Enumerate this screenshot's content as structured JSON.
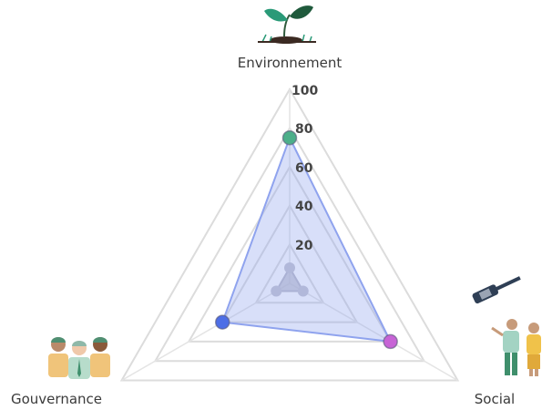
{
  "chart_data": {
    "type": "radar",
    "axes": [
      "Environnement",
      "Social",
      "Gouvernance"
    ],
    "range": [
      0,
      100
    ],
    "ticks": [
      20,
      40,
      60,
      80,
      100
    ],
    "grid": true,
    "legend": "none",
    "series": [
      {
        "values": [
          75,
          60,
          40
        ],
        "color": "#8fa3ee"
      },
      {
        "values": [
          8,
          8,
          8
        ],
        "color": "#b9b9c6"
      }
    ],
    "point_colors": [
      "#4caf8a",
      "#c764d6",
      "#4d6ee6"
    ],
    "icons": [
      "seedling-icon",
      "gavel-people-icon",
      "business-group-icon"
    ]
  }
}
